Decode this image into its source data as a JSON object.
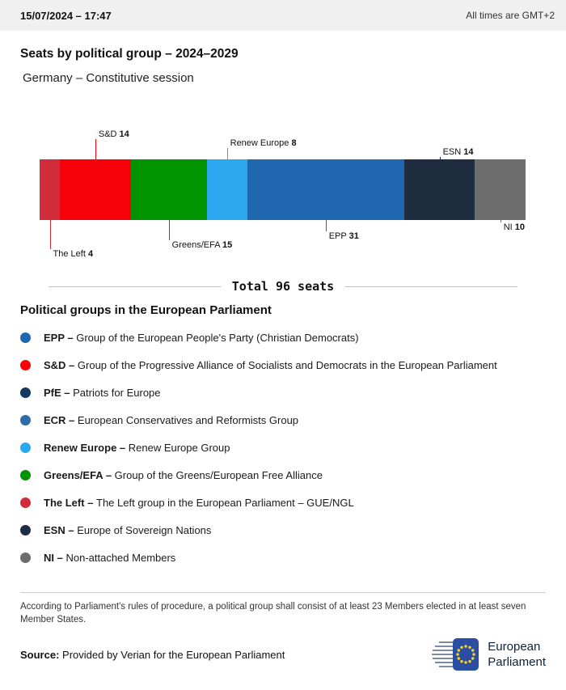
{
  "header": {
    "datetime": "15/07/2024 – 17:47",
    "timezone_note": "All times are GMT+2"
  },
  "title": "Seats by political group – 2024–2029",
  "subtitle": "Germany – Constitutive session",
  "chart_data": {
    "type": "bar",
    "variant": "horizontal-stacked-single-bar",
    "title": "Seats by political group – 2024–2029",
    "subtitle": "Germany – Constitutive session",
    "total_seats": 96,
    "total_label": "Total 96 seats",
    "segments": [
      {
        "group": "The Left",
        "seats": 4,
        "color": "#d02c3a",
        "label_position": "below",
        "label_row": 3
      },
      {
        "group": "S&D",
        "seats": 14,
        "color": "#f60009",
        "label_position": "above",
        "label_row": 0
      },
      {
        "group": "Greens/EFA",
        "seats": 15,
        "color": "#029302",
        "label_position": "below",
        "label_row": 2
      },
      {
        "group": "Renew Europe",
        "seats": 8,
        "color": "#2ba8f0",
        "label_position": "above",
        "label_row": 1
      },
      {
        "group": "EPP",
        "seats": 31,
        "color": "#1f68b0",
        "label_position": "below",
        "label_row": 1
      },
      {
        "group": "ESN",
        "seats": 14,
        "color": "#1e2d40",
        "label_position": "above",
        "label_row": 2
      },
      {
        "group": "NI",
        "seats": 10,
        "color": "#6d6d6d",
        "label_position": "below",
        "label_row": 0
      }
    ]
  },
  "legend": {
    "heading": "Political groups in the European Parliament",
    "items": [
      {
        "abbr": "EPP –",
        "name": "Group of the European People's Party (Christian Democrats)",
        "color": "#1f68b0"
      },
      {
        "abbr": "S&D –",
        "name": "Group of the Progressive Alliance of Socialists and Democrats in the European Parliament",
        "color": "#f60009"
      },
      {
        "abbr": "PfE –",
        "name": "Patriots for Europe",
        "color": "#16385e"
      },
      {
        "abbr": "ECR –",
        "name": "European Conservatives and Reformists Group",
        "color": "#2e6ca6"
      },
      {
        "abbr": "Renew Europe –",
        "name": "Renew Europe Group",
        "color": "#2ba8f0"
      },
      {
        "abbr": "Greens/EFA –",
        "name": "Group of the Greens/European Free Alliance",
        "color": "#029302"
      },
      {
        "abbr": "The Left –",
        "name": "The Left group in the European Parliament – GUE/NGL",
        "color": "#d02c3a"
      },
      {
        "abbr": "ESN –",
        "name": "Europe of Sovereign Nations",
        "color": "#1e2d40"
      },
      {
        "abbr": "NI –",
        "name": "Non-attached Members",
        "color": "#6d6d6d"
      }
    ]
  },
  "footnote": "According to Parliament's rules of procedure, a political group shall consist of at least 23 Members elected in at least seven Member States.",
  "source": {
    "label": "Source:",
    "text": " Provided by Verian for the European Parliament"
  },
  "logo": {
    "line1": "European",
    "line2": "Parliament",
    "flag_color": "#2b4ea2",
    "star_color": "#ffd617"
  }
}
